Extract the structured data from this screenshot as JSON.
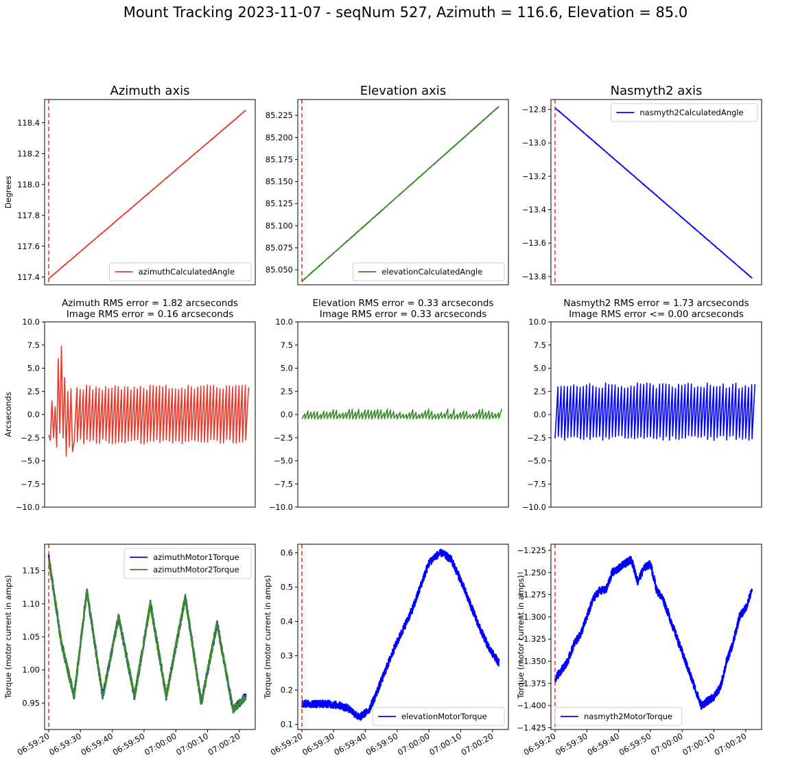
{
  "figure": {
    "title": "Mount Tracking 2023-11-07 - seqNum 527, Azimuth = 116.6, Elevation = 85.0"
  },
  "chart_data": [
    {
      "panel": "azimuth-angle",
      "type": "line",
      "title": "Azimuth axis",
      "ylabel": "Degrees",
      "xlim": [
        -1.3,
        65.0
      ],
      "ylim": [
        117.35,
        118.55
      ],
      "yticks": [
        117.4,
        117.6,
        117.8,
        118.0,
        118.2,
        118.4
      ],
      "ytick_labels": [
        "117.4",
        "117.6",
        "117.8",
        "118.0",
        "118.2",
        "118.4"
      ],
      "legend": "bottom-right",
      "vline_x": 0,
      "series": [
        {
          "name": "azimuthCalculatedAngle",
          "color": "#e8382a",
          "x": [
            0,
            62
          ],
          "y": [
            117.39,
            118.48
          ],
          "noise": 0.002,
          "noise_period": 1
        }
      ]
    },
    {
      "panel": "elevation-angle",
      "type": "line",
      "title": "Elevation axis",
      "xlim": [
        -1.3,
        65.0
      ],
      "ylim": [
        85.033,
        85.243
      ],
      "yticks": [
        85.05,
        85.075,
        85.1,
        85.125,
        85.15,
        85.175,
        85.2,
        85.225
      ],
      "ytick_labels": [
        "85.050",
        "85.075",
        "85.100",
        "85.125",
        "85.150",
        "85.175",
        "85.200",
        "85.225"
      ],
      "legend": "bottom-right",
      "vline_x": 0,
      "series": [
        {
          "name": "elevationCalculatedAngle",
          "color": "#3a8a2a",
          "x": [
            0,
            62
          ],
          "y": [
            85.037,
            85.235
          ],
          "noise": 0.0005,
          "noise_period": 1
        }
      ]
    },
    {
      "panel": "nasmyth2-angle",
      "type": "line",
      "title": "Nasmyth2 axis",
      "xlim": [
        -1.3,
        65.0
      ],
      "ylim": [
        -13.85,
        -12.74
      ],
      "yticks": [
        -12.8,
        -13.0,
        -13.2,
        -13.4,
        -13.6,
        -13.8
      ],
      "ytick_labels": [
        "−12.8",
        "−13.0",
        "−13.2",
        "−13.4",
        "−13.6",
        "−13.8"
      ],
      "legend": "top-right",
      "vline_x": 0,
      "series": [
        {
          "name": "nasmyth2CalculatedAngle",
          "color": "#0000ff",
          "x": [
            0,
            62
          ],
          "y": [
            -12.79,
            -13.81
          ],
          "noise": 0.002,
          "noise_period": 1
        }
      ]
    },
    {
      "panel": "azimuth-error",
      "type": "line",
      "title": "Azimuth RMS error = 1.82 arcseconds\n    Image RMS error = 0.16 arcseconds",
      "ylabel": "Arcseconds",
      "xlim": [
        -1.3,
        65.0
      ],
      "ylim": [
        -10,
        10
      ],
      "yticks": [
        -10,
        -7.5,
        -5,
        -2.5,
        0,
        2.5,
        5,
        7.5,
        10
      ],
      "ytick_labels": [
        "−10.0",
        "−7.5",
        "−5.0",
        "−2.5",
        "0.0",
        "2.5",
        "5.0",
        "7.5",
        "10.0"
      ],
      "series": [
        {
          "name": "",
          "color": "#e8382a",
          "x": [
            0,
            0.5,
            1,
            1.5,
            2,
            2.5,
            3,
            3.5,
            4,
            4.5,
            5,
            5.5,
            6,
            6.5,
            7,
            7.5,
            8,
            9,
            10,
            11,
            12,
            14,
            16,
            18,
            20,
            22,
            24,
            26,
            28,
            30,
            32,
            34,
            36,
            38,
            40,
            42,
            44,
            46,
            48,
            50,
            52,
            54,
            56,
            58,
            60,
            62
          ],
          "amplitude": [
            -2.2,
            -2.8,
            1.5,
            -2.5,
            0.8,
            -3.5,
            6.0,
            -2.0,
            7.4,
            -2.5,
            4.0,
            -4.5,
            2.5,
            -3.5,
            2.8,
            -4.0,
            3.0,
            3.0,
            3.0,
            3.0,
            3.0,
            3.0,
            3.0,
            3.0,
            3.0,
            3.0,
            3.0,
            3.0,
            3.0,
            3.0,
            3.0,
            3.0,
            3.0,
            3.0,
            3.0,
            3.0,
            3.0,
            3.0,
            3.0,
            3.0,
            3.0,
            3.0,
            3.0,
            3.0,
            3.0,
            3.0
          ],
          "oscillation_period": 1.0,
          "oscillation_range_from_x": 8,
          "oscillation_min": -3.2,
          "oscillation_max": 3.2
        }
      ]
    },
    {
      "panel": "elevation-error",
      "type": "line",
      "title": "Elevation RMS error = 0.33 arcseconds\n    Image RMS error = 0.33 arcseconds",
      "xlim": [
        -1.3,
        65.0
      ],
      "ylim": [
        -10,
        10
      ],
      "yticks": [
        -10,
        -7.5,
        -5,
        -2.5,
        0,
        2.5,
        5,
        7.5,
        10
      ],
      "ytick_labels": [
        "−10.0",
        "−7.5",
        "−5.0",
        "−2.5",
        "0.0",
        "2.5",
        "5.0",
        "7.5",
        "10.0"
      ],
      "series": [
        {
          "name": "",
          "color": "#3a8a2a",
          "oscillation_period": 1.0,
          "oscillation_range_from_x": 0,
          "oscillation_min": -0.5,
          "oscillation_max": 0.6
        }
      ]
    },
    {
      "panel": "nasmyth2-error",
      "type": "line",
      "title": "Nasmyth2 RMS error = 1.73 arcseconds\n  Image RMS error <= 0.00 arcseconds",
      "xlim": [
        -1.3,
        65.0
      ],
      "ylim": [
        -10,
        10
      ],
      "yticks": [
        -10,
        -7.5,
        -5,
        -2.5,
        0,
        2.5,
        5,
        7.5,
        10
      ],
      "ytick_labels": [
        "−10.0",
        "−7.5",
        "−5.0",
        "−2.5",
        "0.0",
        "2.5",
        "5.0",
        "7.5",
        "10.0"
      ],
      "series": [
        {
          "name": "",
          "color": "#0000ff",
          "oscillation_period": 1.0,
          "oscillation_range_from_x": 0,
          "oscillation_min": -2.8,
          "oscillation_max": 3.4
        }
      ]
    },
    {
      "panel": "azimuth-torque",
      "type": "line",
      "ylabel": "Torque (motor current in amps)",
      "xlim": [
        -1.3,
        65.0
      ],
      "ylim": [
        0.91,
        1.19
      ],
      "yticks": [
        0.95,
        1.0,
        1.05,
        1.1,
        1.15
      ],
      "ytick_labels": [
        "0.95",
        "1.00",
        "1.05",
        "1.10",
        "1.15"
      ],
      "xticks": [
        0,
        10,
        20,
        30,
        40,
        50,
        60
      ],
      "xtick_labels": [
        "06:59:20",
        "06:59:30",
        "06:59:40",
        "06:59:50",
        "07:00:00",
        "07:00:10",
        "07:00:20"
      ],
      "legend": "top-right",
      "vline_x": 0,
      "series": [
        {
          "name": "azimuthMotor1Torque",
          "color": "#0000ff",
          "x": [
            0,
            4,
            8,
            12,
            17,
            22,
            27,
            32,
            37,
            43,
            48,
            53,
            58,
            62
          ],
          "y": [
            1.17,
            1.04,
            0.96,
            1.12,
            0.96,
            1.08,
            0.96,
            1.1,
            0.96,
            1.11,
            0.95,
            1.07,
            0.94,
            0.96
          ]
        },
        {
          "name": "azimuthMotor2Torque",
          "color": "#3a8a2a",
          "x": [
            0,
            4,
            8,
            12,
            17,
            22,
            27,
            32,
            37,
            43,
            48,
            53,
            58,
            62
          ],
          "y": [
            1.17,
            1.04,
            0.96,
            1.12,
            0.96,
            1.08,
            0.96,
            1.1,
            0.96,
            1.11,
            0.95,
            1.07,
            0.94,
            0.96
          ]
        }
      ]
    },
    {
      "panel": "elevation-torque",
      "type": "line",
      "ylabel": "Torque (motor current in amps)",
      "xlim": [
        -1.3,
        65.0
      ],
      "ylim": [
        0.085,
        0.625
      ],
      "yticks": [
        0.1,
        0.2,
        0.3,
        0.4,
        0.5,
        0.6
      ],
      "ytick_labels": [
        "0.1",
        "0.2",
        "0.3",
        "0.4",
        "0.5",
        "0.6"
      ],
      "xticks": [
        0,
        10,
        20,
        30,
        40,
        50,
        60
      ],
      "xtick_labels": [
        "06:59:20",
        "06:59:30",
        "06:59:40",
        "06:59:50",
        "07:00:00",
        "07:00:10",
        "07:00:20"
      ],
      "legend": "bottom-right",
      "vline_x": 0,
      "series": [
        {
          "name": "elevationMotorTorque",
          "color": "#0000ff",
          "x": [
            0,
            4,
            8,
            12,
            15,
            18,
            21,
            23,
            26,
            29,
            32,
            35,
            38,
            40,
            42,
            44,
            47,
            50,
            53,
            56,
            59,
            62
          ],
          "y": [
            0.16,
            0.16,
            0.16,
            0.155,
            0.145,
            0.12,
            0.14,
            0.18,
            0.25,
            0.32,
            0.38,
            0.44,
            0.52,
            0.57,
            0.59,
            0.6,
            0.58,
            0.52,
            0.45,
            0.38,
            0.32,
            0.28
          ]
        }
      ]
    },
    {
      "panel": "nasmyth2-torque",
      "type": "line",
      "ylabel": "Torque (motor current in amps)",
      "xlim": [
        -1.3,
        65.0
      ],
      "ylim": [
        -1.427,
        -1.218
      ],
      "yticks": [
        -1.225,
        -1.25,
        -1.275,
        -1.3,
        -1.325,
        -1.35,
        -1.375,
        -1.4,
        -1.425
      ],
      "ytick_labels": [
        "−1.225",
        "−1.250",
        "−1.275",
        "−1.300",
        "−1.325",
        "−1.350",
        "−1.375",
        "−1.400",
        "−1.425"
      ],
      "xticks": [
        0,
        10,
        20,
        30,
        40,
        50,
        60
      ],
      "xtick_labels": [
        "06:59:20",
        "06:59:30",
        "06:59:40",
        "06:59:50",
        "07:00:00",
        "07:00:10",
        "07:00:20"
      ],
      "legend": "bottom-left",
      "vline_x": 0,
      "series": [
        {
          "name": "nasmyth2MotorTorque",
          "color": "#0000ff",
          "x": [
            0,
            2,
            4,
            6,
            8,
            10,
            12,
            14,
            16,
            18,
            20,
            22,
            24,
            26,
            28,
            30,
            32,
            34,
            36,
            38,
            40,
            42,
            44,
            46,
            48,
            50,
            52,
            54,
            56,
            58,
            60,
            62
          ],
          "y": [
            -1.37,
            -1.36,
            -1.35,
            -1.33,
            -1.32,
            -1.3,
            -1.28,
            -1.27,
            -1.27,
            -1.25,
            -1.245,
            -1.24,
            -1.235,
            -1.26,
            -1.245,
            -1.24,
            -1.27,
            -1.28,
            -1.3,
            -1.32,
            -1.34,
            -1.36,
            -1.38,
            -1.4,
            -1.395,
            -1.39,
            -1.38,
            -1.35,
            -1.33,
            -1.3,
            -1.29,
            -1.27
          ]
        }
      ]
    }
  ]
}
